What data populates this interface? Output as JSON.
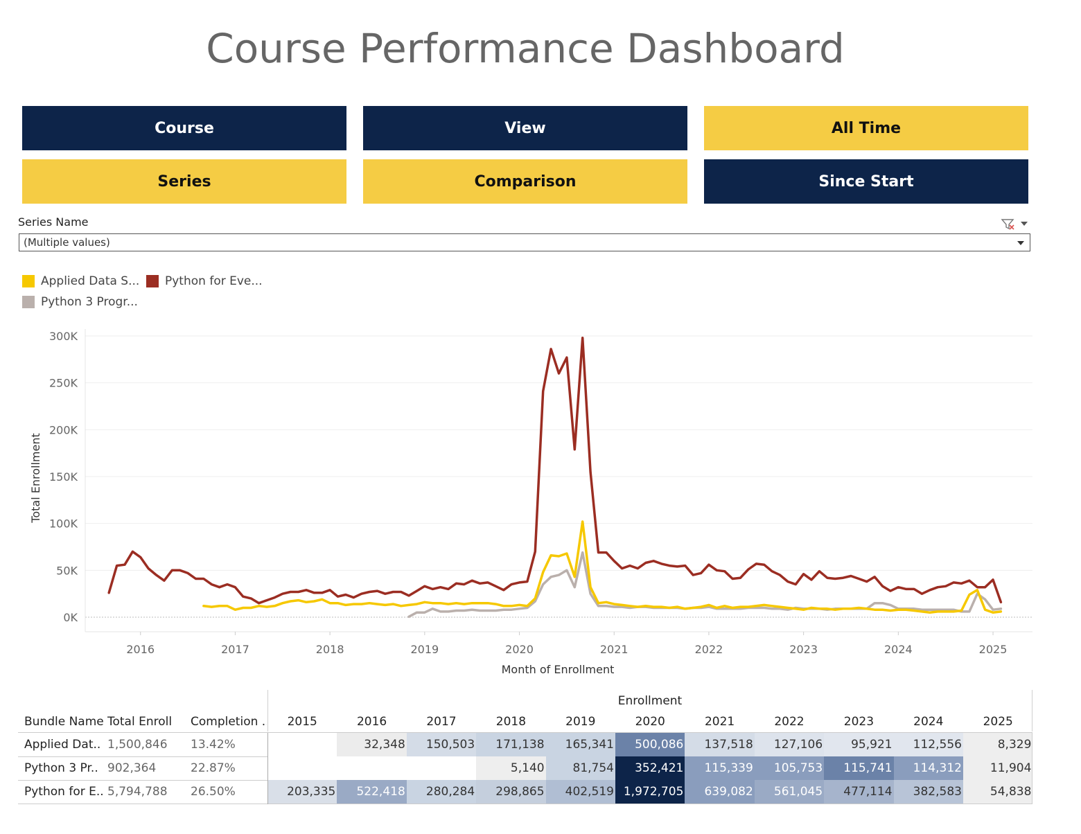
{
  "header": {
    "title": "Course Performance Dashboard"
  },
  "buttons": [
    {
      "label": "Course",
      "style": "dark"
    },
    {
      "label": "View",
      "style": "dark"
    },
    {
      "label": "All Time",
      "style": "light"
    },
    {
      "label": "Series",
      "style": "light"
    },
    {
      "label": "Comparison",
      "style": "light"
    },
    {
      "label": "Since Start",
      "style": "dark"
    }
  ],
  "filter": {
    "label": "Series Name",
    "value": "(Multiple values)"
  },
  "legend": [
    {
      "label": "Applied Data S...",
      "color": "#f6c800"
    },
    {
      "label": "Python for Eve...",
      "color": "#9b2d22"
    },
    {
      "label": "Python 3 Progr...",
      "color": "#bab0ac"
    }
  ],
  "colors": {
    "dark": "#0d2449",
    "light": "#f5cc44",
    "applied": "#f6c800",
    "python_everybody": "#9b2d22",
    "python3": "#bab0ac"
  },
  "chart_data": {
    "type": "line",
    "xlabel": "Month of Enrollment",
    "ylabel": "Total Enrollment",
    "x_ticks": [
      "2016",
      "2017",
      "2018",
      "2019",
      "2020",
      "2021",
      "2022",
      "2023",
      "2024",
      "2025"
    ],
    "y_ticks": [
      "0K",
      "50K",
      "100K",
      "150K",
      "200K",
      "250K",
      "300K"
    ],
    "ylim": [
      0,
      300000
    ],
    "xlim": [
      "2015-06",
      "2025-06"
    ],
    "grid": true,
    "series": [
      {
        "name": "Python for Eve...",
        "color": "#9b2d22",
        "x": [
          "2015-09",
          "2015-10",
          "2015-11",
          "2015-12",
          "2016-01",
          "2016-02",
          "2016-03",
          "2016-04",
          "2016-05",
          "2016-06",
          "2016-07",
          "2016-08",
          "2016-09",
          "2016-10",
          "2016-11",
          "2016-12",
          "2017-01",
          "2017-02",
          "2017-03",
          "2017-04",
          "2017-05",
          "2017-06",
          "2017-07",
          "2017-08",
          "2017-09",
          "2017-10",
          "2017-11",
          "2017-12",
          "2018-01",
          "2018-02",
          "2018-03",
          "2018-04",
          "2018-05",
          "2018-06",
          "2018-07",
          "2018-08",
          "2018-09",
          "2018-10",
          "2018-11",
          "2018-12",
          "2019-01",
          "2019-02",
          "2019-03",
          "2019-04",
          "2019-05",
          "2019-06",
          "2019-07",
          "2019-08",
          "2019-09",
          "2019-10",
          "2019-11",
          "2019-12",
          "2020-01",
          "2020-02",
          "2020-03",
          "2020-04",
          "2020-05",
          "2020-06",
          "2020-07",
          "2020-08",
          "2020-09",
          "2020-10",
          "2020-11",
          "2020-12",
          "2021-01",
          "2021-02",
          "2021-03",
          "2021-04",
          "2021-05",
          "2021-06",
          "2021-07",
          "2021-08",
          "2021-09",
          "2021-10",
          "2021-11",
          "2021-12",
          "2022-01",
          "2022-02",
          "2022-03",
          "2022-04",
          "2022-05",
          "2022-06",
          "2022-07",
          "2022-08",
          "2022-09",
          "2022-10",
          "2022-11",
          "2022-12",
          "2023-01",
          "2023-02",
          "2023-03",
          "2023-04",
          "2023-05",
          "2023-06",
          "2023-07",
          "2023-08",
          "2023-09",
          "2023-10",
          "2023-11",
          "2023-12",
          "2024-01",
          "2024-02",
          "2024-03",
          "2024-04",
          "2024-05",
          "2024-06",
          "2024-07",
          "2024-08",
          "2024-09",
          "2024-10",
          "2024-11",
          "2024-12",
          "2025-01",
          "2025-02"
        ],
        "values": [
          26000,
          55000,
          56000,
          70000,
          64000,
          52000,
          45000,
          39000,
          50000,
          50000,
          47000,
          41000,
          41000,
          35000,
          32000,
          35000,
          32000,
          22000,
          20000,
          15000,
          18000,
          21000,
          25000,
          27000,
          27000,
          29000,
          26000,
          26000,
          29000,
          22000,
          24000,
          21000,
          25000,
          27000,
          28000,
          25000,
          27000,
          27000,
          23000,
          28000,
          33000,
          30000,
          32000,
          30000,
          36000,
          35000,
          39000,
          36000,
          37000,
          33000,
          29000,
          35000,
          37000,
          38000,
          70000,
          241000,
          286000,
          260000,
          277000,
          179000,
          298000,
          155000,
          69000,
          69000,
          60000,
          52000,
          55000,
          52000,
          58000,
          60000,
          57000,
          55000,
          54000,
          55000,
          45000,
          47000,
          56000,
          50000,
          49000,
          41000,
          42000,
          51000,
          57000,
          56000,
          49000,
          45000,
          38000,
          35000,
          46000,
          40000,
          49000,
          42000,
          41000,
          42000,
          44000,
          41000,
          38000,
          43000,
          33000,
          28000,
          32000,
          30000,
          30000,
          25000,
          29000,
          32000,
          33000,
          37000,
          36000,
          39000,
          32000,
          32000,
          40000,
          16000
        ]
      },
      {
        "name": "Applied Data S...",
        "color": "#f6c800",
        "x": [
          "2016-09",
          "2016-10",
          "2016-11",
          "2016-12",
          "2017-01",
          "2017-02",
          "2017-03",
          "2017-04",
          "2017-05",
          "2017-06",
          "2017-07",
          "2017-08",
          "2017-09",
          "2017-10",
          "2017-11",
          "2017-12",
          "2018-01",
          "2018-02",
          "2018-03",
          "2018-04",
          "2018-05",
          "2018-06",
          "2018-07",
          "2018-08",
          "2018-09",
          "2018-10",
          "2018-11",
          "2018-12",
          "2019-01",
          "2019-02",
          "2019-03",
          "2019-04",
          "2019-05",
          "2019-06",
          "2019-07",
          "2019-08",
          "2019-09",
          "2019-10",
          "2019-11",
          "2019-12",
          "2020-01",
          "2020-02",
          "2020-03",
          "2020-04",
          "2020-05",
          "2020-06",
          "2020-07",
          "2020-08",
          "2020-09",
          "2020-10",
          "2020-11",
          "2020-12",
          "2021-01",
          "2021-02",
          "2021-03",
          "2021-04",
          "2021-05",
          "2021-06",
          "2021-07",
          "2021-08",
          "2021-09",
          "2021-10",
          "2021-11",
          "2021-12",
          "2022-01",
          "2022-02",
          "2022-03",
          "2022-04",
          "2022-05",
          "2022-06",
          "2022-07",
          "2022-08",
          "2022-09",
          "2022-10",
          "2022-11",
          "2022-12",
          "2023-01",
          "2023-02",
          "2023-03",
          "2023-04",
          "2023-05",
          "2023-06",
          "2023-07",
          "2023-08",
          "2023-09",
          "2023-10",
          "2023-11",
          "2023-12",
          "2024-01",
          "2024-02",
          "2024-03",
          "2024-04",
          "2024-05",
          "2024-06",
          "2024-07",
          "2024-08",
          "2024-09",
          "2024-10",
          "2024-11",
          "2024-12",
          "2025-01",
          "2025-02"
        ],
        "values": [
          12000,
          11000,
          12000,
          12000,
          8000,
          10000,
          10000,
          12000,
          11000,
          12000,
          15000,
          17000,
          18000,
          16000,
          17000,
          19000,
          15000,
          15000,
          13000,
          14000,
          14000,
          15000,
          14000,
          13000,
          14000,
          12000,
          13000,
          14000,
          16000,
          15000,
          15000,
          14000,
          15000,
          14000,
          15000,
          15000,
          15000,
          14000,
          12000,
          12000,
          13000,
          12000,
          20000,
          48000,
          66000,
          65000,
          68000,
          43000,
          102000,
          32000,
          15000,
          16000,
          14000,
          13000,
          12000,
          11000,
          12000,
          11000,
          11000,
          10000,
          11000,
          9000,
          10000,
          11000,
          13000,
          10000,
          12000,
          10000,
          11000,
          11000,
          12000,
          13000,
          12000,
          11000,
          10000,
          9000,
          8000,
          10000,
          9000,
          9000,
          8000,
          9000,
          9000,
          10000,
          9000,
          8000,
          8000,
          7000,
          8000,
          8000,
          7000,
          6000,
          5000,
          6000,
          6000,
          6000,
          7000,
          24000,
          29000,
          8000,
          5000,
          6000
        ]
      },
      {
        "name": "Python 3 Progr...",
        "color": "#bab0ac",
        "x": [
          "2018-11",
          "2018-12",
          "2019-01",
          "2019-02",
          "2019-03",
          "2019-04",
          "2019-05",
          "2019-06",
          "2019-07",
          "2019-08",
          "2019-09",
          "2019-10",
          "2019-11",
          "2019-12",
          "2020-01",
          "2020-02",
          "2020-03",
          "2020-04",
          "2020-05",
          "2020-06",
          "2020-07",
          "2020-08",
          "2020-09",
          "2020-10",
          "2020-11",
          "2020-12",
          "2021-01",
          "2021-02",
          "2021-03",
          "2021-04",
          "2021-05",
          "2021-06",
          "2021-07",
          "2021-08",
          "2021-09",
          "2021-10",
          "2021-11",
          "2021-12",
          "2022-01",
          "2022-02",
          "2022-03",
          "2022-04",
          "2022-05",
          "2022-06",
          "2022-07",
          "2022-08",
          "2022-09",
          "2022-10",
          "2022-11",
          "2022-12",
          "2023-01",
          "2023-02",
          "2023-03",
          "2023-04",
          "2023-05",
          "2023-06",
          "2023-07",
          "2023-08",
          "2023-09",
          "2023-10",
          "2023-11",
          "2023-12",
          "2024-01",
          "2024-02",
          "2024-03",
          "2024-04",
          "2024-05",
          "2024-06",
          "2024-07",
          "2024-08",
          "2024-09",
          "2024-10",
          "2024-11",
          "2024-12",
          "2025-01",
          "2025-02"
        ],
        "values": [
          500,
          5000,
          5000,
          9000,
          6000,
          6000,
          7000,
          7000,
          8000,
          7000,
          7000,
          7000,
          8000,
          8000,
          9000,
          10000,
          17000,
          35000,
          43000,
          45000,
          50000,
          32000,
          69000,
          25000,
          12000,
          12000,
          11000,
          11000,
          10000,
          11000,
          11000,
          10000,
          10000,
          10000,
          10000,
          9000,
          10000,
          10000,
          11000,
          9000,
          9000,
          9000,
          9000,
          10000,
          10000,
          10000,
          9000,
          9000,
          8000,
          10000,
          9000,
          9000,
          9000,
          8000,
          9000,
          9000,
          9000,
          9000,
          9000,
          15000,
          15000,
          13000,
          9000,
          9000,
          9000,
          8000,
          8000,
          8000,
          8000,
          8000,
          6000,
          6000,
          25000,
          19000,
          8000,
          9000
        ]
      }
    ]
  },
  "table": {
    "group_header": "Enrollment",
    "col_headers": [
      "Bundle Name",
      "Total Enroll",
      "Completion .."
    ],
    "years": [
      "2015",
      "2016",
      "2017",
      "2018",
      "2019",
      "2020",
      "2021",
      "2022",
      "2023",
      "2024",
      "2025"
    ],
    "rows": [
      {
        "name": "Applied Dat..",
        "total": "1,500,846",
        "completion": "13.42%",
        "cells": [
          "",
          "32,348",
          "150,503",
          "171,138",
          "165,341",
          "500,086",
          "137,518",
          "127,106",
          "95,921",
          "112,556",
          "8,329"
        ],
        "shades": [
          "#ffffff",
          "#ececec",
          "#d4dce7",
          "#c9d4e2",
          "#c9d4e2",
          "#6b82a8",
          "#d4dce7",
          "#dde3ec",
          "#e1e6ee",
          "#e1e6ee",
          "#eeeeee"
        ]
      },
      {
        "name": "Python 3 Pr..",
        "total": "902,364",
        "completion": "22.87%",
        "cells": [
          "",
          "",
          "",
          "5,140",
          "81,754",
          "352,421",
          "115,339",
          "105,753",
          "115,741",
          "114,312",
          "11,904"
        ],
        "shades": [
          "#ffffff",
          "#ffffff",
          "#ffffff",
          "#eeeeee",
          "#c9d4e2",
          "#0d2449",
          "#8a9dbd",
          "#8a9dbd",
          "#6b82a8",
          "#8a9dbd",
          "#eeeeee"
        ]
      },
      {
        "name": "Python for E..",
        "total": "5,794,788",
        "completion": "26.50%",
        "cells": [
          "203,335",
          "522,418",
          "280,284",
          "298,865",
          "402,519",
          "1,972,705",
          "639,082",
          "561,045",
          "477,114",
          "382,583",
          "54,838"
        ],
        "shades": [
          "#d9dfe8",
          "#9aaac5",
          "#c9d4e2",
          "#c5cfdd",
          "#b0bed3",
          "#0d2449",
          "#8a9dbd",
          "#9aaac5",
          "#a6b4cc",
          "#b8c4d7",
          "#eeeeee"
        ]
      }
    ]
  }
}
